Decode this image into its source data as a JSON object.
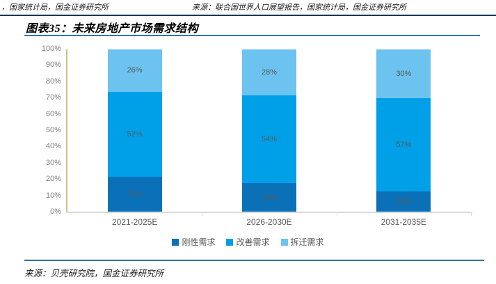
{
  "header": {
    "left_source": "，国家统计局，国金证券研究所",
    "right_source": "来源：联合国世界人口展望报告，国家统计局，国金证券研究所"
  },
  "figure": {
    "title": "图表35：未来房地产市场需求结构"
  },
  "footer": {
    "source": "来源：贝壳研究院，国金证券研究所"
  },
  "chart_data": {
    "type": "bar",
    "stacked": true,
    "title": "未来房地产市场需求结构",
    "categories": [
      "2021-2025E",
      "2026-2030E",
      "2031-2035E"
    ],
    "series": [
      {
        "name": "刚性需求",
        "color": "#0a71b9",
        "values": [
          22,
          18,
          13
        ]
      },
      {
        "name": "改善需求",
        "color": "#00a0e9",
        "values": [
          52,
          54,
          57
        ]
      },
      {
        "name": "拆迁需求",
        "color": "#6cc3f0",
        "values": [
          26,
          28,
          30
        ]
      }
    ],
    "y_tick_labels": [
      "100%",
      "90%",
      "80%",
      "70%",
      "60%",
      "50%",
      "40%",
      "30%",
      "20%",
      "10%",
      "0%"
    ],
    "ylim": [
      0,
      100
    ],
    "grid": false,
    "legend_position": "bottom",
    "data_label_suffix": "%"
  },
  "colors": {
    "top_rule": "#16365c",
    "title_rule": "#2e75b6",
    "bottom_rule": "#35719f",
    "y_axis_line": "#d3bd85",
    "baseline": "#d9d9d9",
    "axis_label_gray": "#595959",
    "tick_label_gray": "#808080"
  }
}
